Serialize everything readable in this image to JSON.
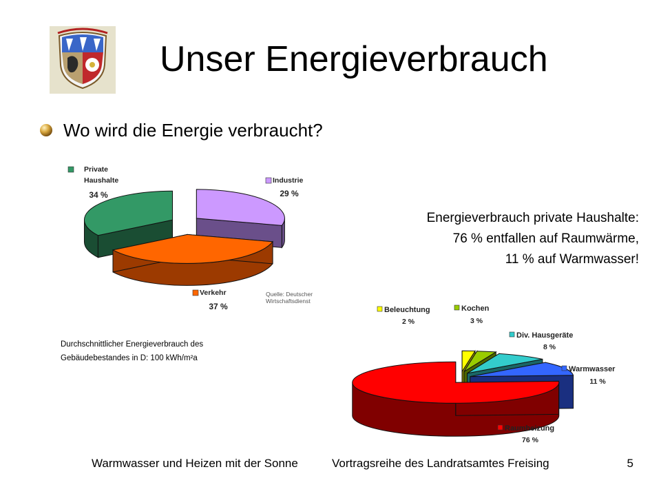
{
  "slide": {
    "title": "Unser Energieverbrauch",
    "bullet": "Wo wird die Energie verbraucht?",
    "note_lines": [
      "Energieverbrauch private Haushalte:",
      "76 % entfallen auf Raumwärme,",
      "11 % auf Warmwasser!"
    ],
    "average_lines": [
      "Durchschnittlicher Energieverbrauch des",
      "Gebäudebestandes in D: 100 kWh/m²a"
    ],
    "footer_left": "Warmwasser und Heizen mit der Sonne",
    "footer_center": "Vortragsreihe des Landratsamtes Freising",
    "page_number": "5"
  },
  "chart_data": [
    {
      "type": "pie",
      "title": "",
      "source_note": [
        "Quelle: Deutscher",
        "Wirtschaftsdienst"
      ],
      "slices": [
        {
          "label_lines": [
            "Industrie"
          ],
          "value": 29,
          "value_label": "29 %",
          "color": "#cc99ff",
          "side_color": "#6a4f8a"
        },
        {
          "label_lines": [
            "Verkehr"
          ],
          "value": 37,
          "value_label": "37 %",
          "color": "#ff6600",
          "side_color": "#9c3a00"
        },
        {
          "label_lines": [
            "Private",
            "Haushalte"
          ],
          "value": 34,
          "value_label": "34 %",
          "color": "#339966",
          "side_color": "#1a4d33"
        }
      ]
    },
    {
      "type": "pie",
      "title": "",
      "slices": [
        {
          "label_lines": [
            "Beleuchtung"
          ],
          "value": 2,
          "value_label": "2 %",
          "color": "#ffff00",
          "side_color": "#8a8a00"
        },
        {
          "label_lines": [
            "Kochen"
          ],
          "value": 3,
          "value_label": "3 %",
          "color": "#99cc00",
          "side_color": "#4d6600"
        },
        {
          "label_lines": [
            "Div. Hausgeräte"
          ],
          "value": 8,
          "value_label": "8 %",
          "color": "#33cccc",
          "side_color": "#1a6666"
        },
        {
          "label_lines": [
            "Warmwasser"
          ],
          "value": 11,
          "value_label": "11 %",
          "color": "#3366ff",
          "side_color": "#1a2f80"
        },
        {
          "label_lines": [
            "Raumheizung"
          ],
          "value": 76,
          "value_label": "76 %",
          "color": "#ff0000",
          "side_color": "#800000"
        }
      ]
    }
  ]
}
